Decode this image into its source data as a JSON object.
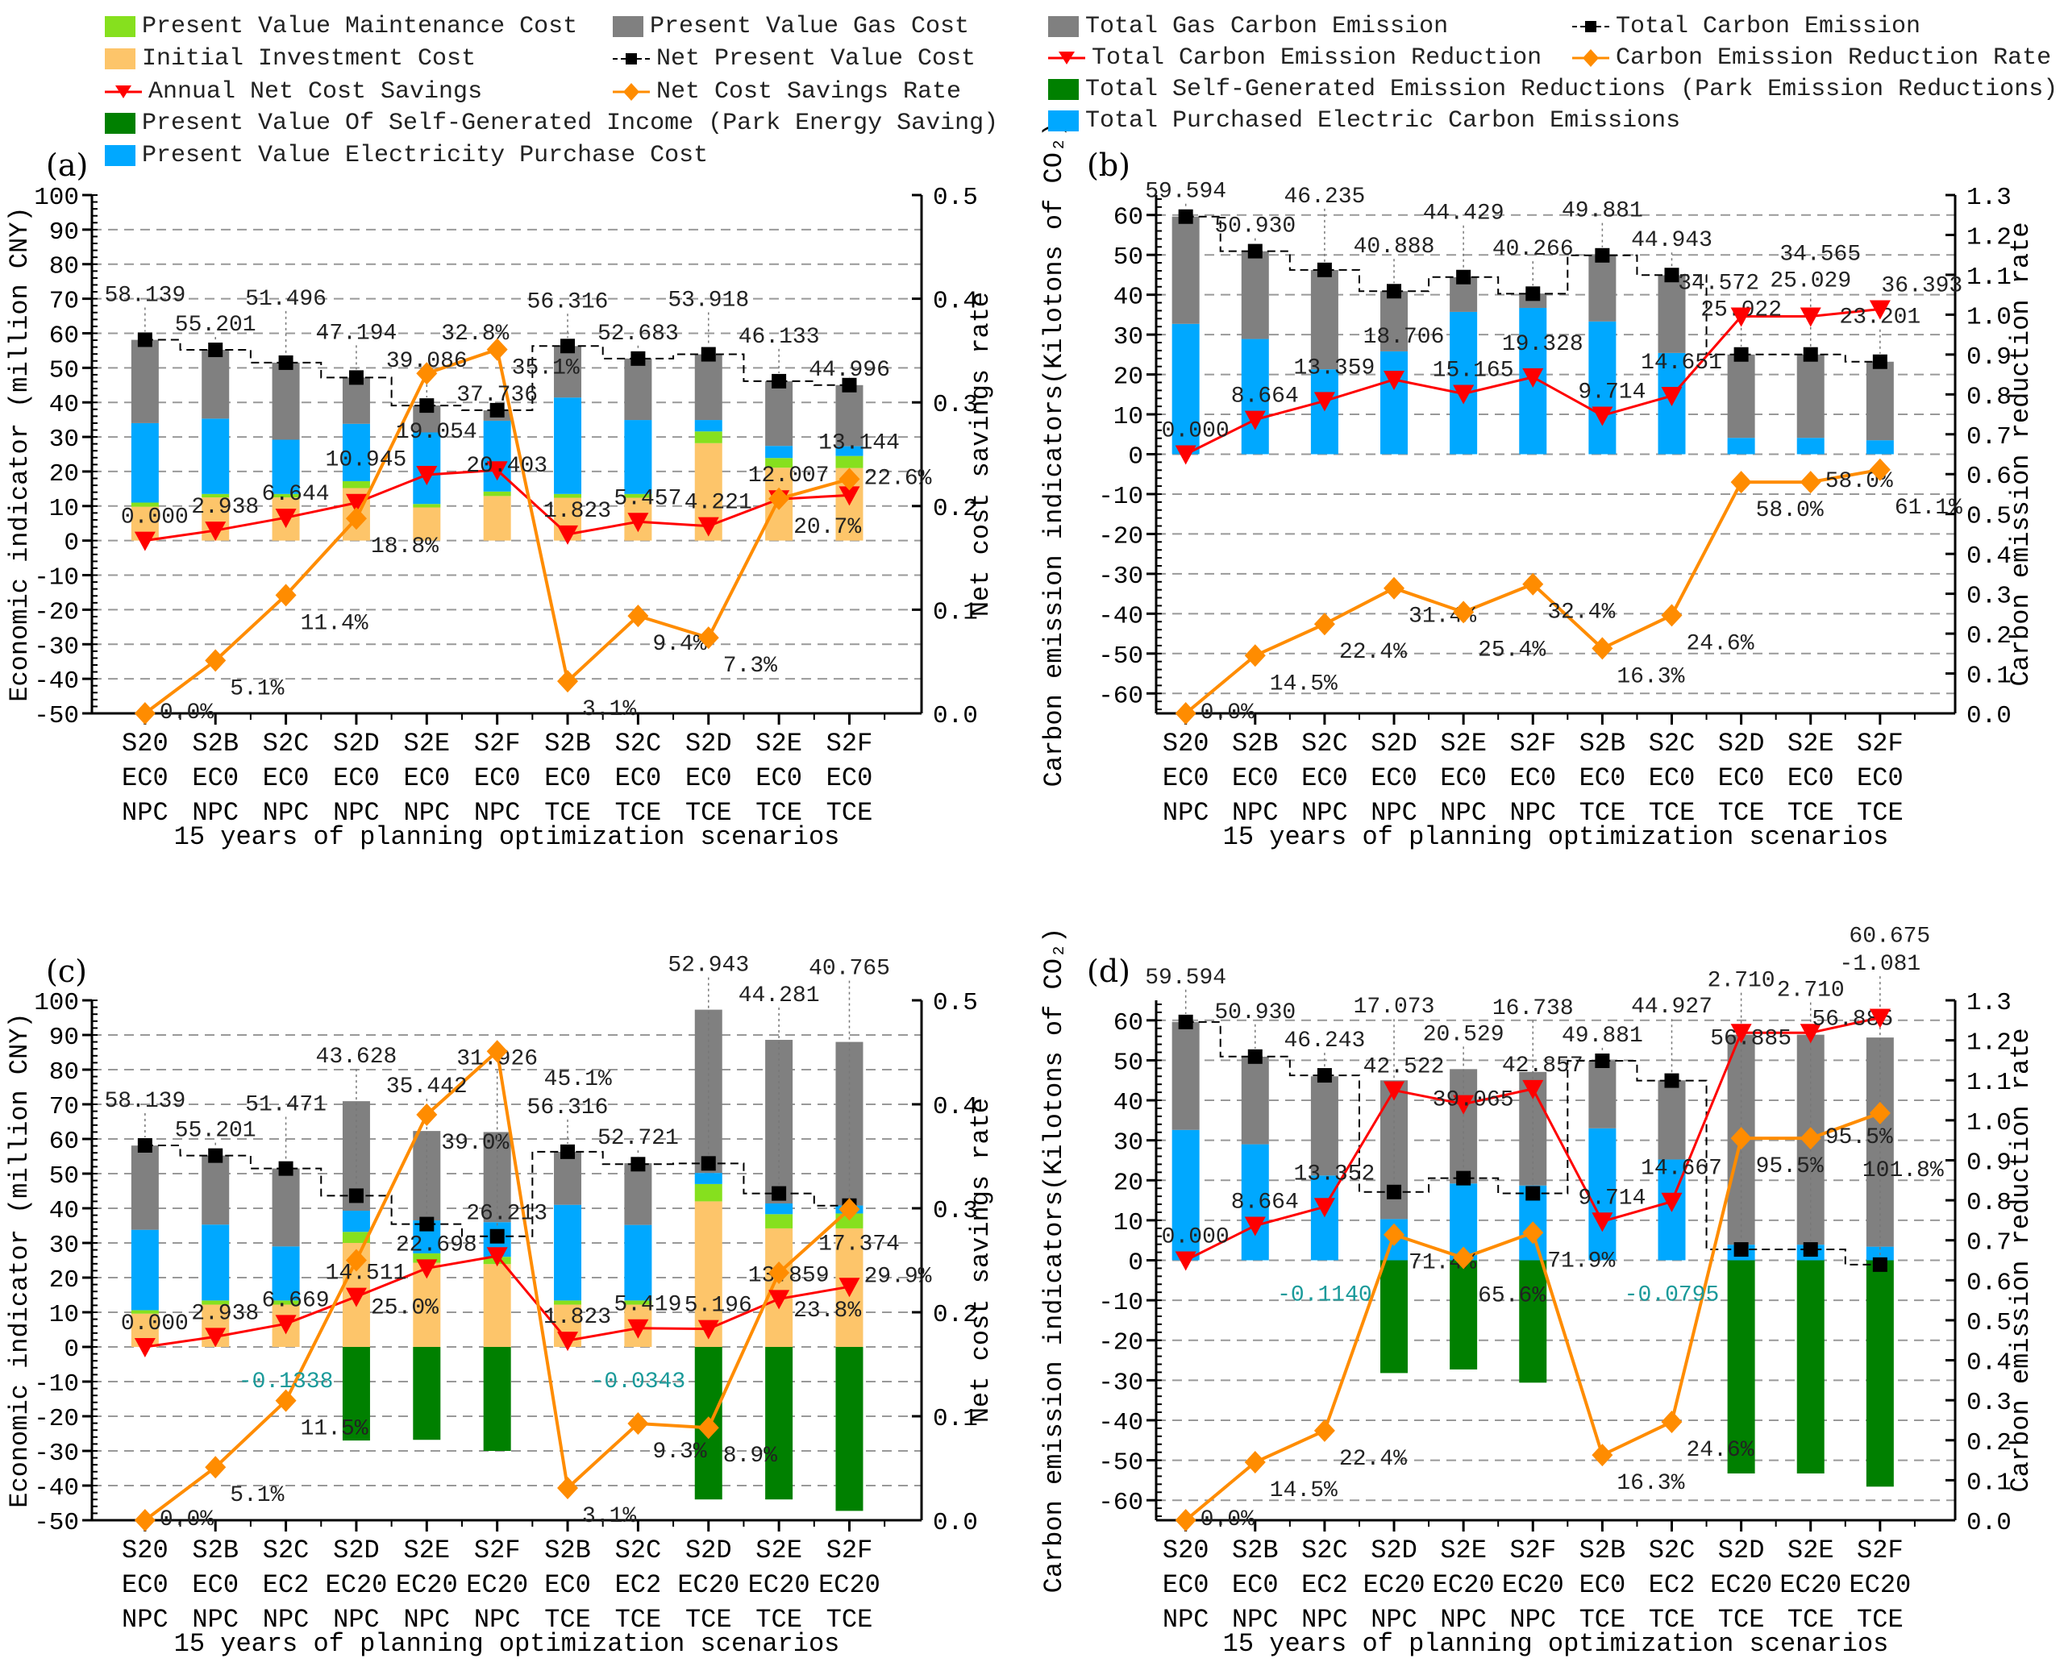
{
  "legend_left": [
    {
      "label": "Present Value Maintenance Cost",
      "color": "#86e01e",
      "kind": "bar"
    },
    {
      "label": "Present Value Gas Cost",
      "color": "#808080",
      "kind": "bar"
    },
    {
      "label": "Initial Investment Cost",
      "color": "#fdc56a",
      "kind": "bar"
    },
    {
      "label": "Net Present Value Cost",
      "color": "#000000",
      "kind": "dash-square"
    },
    {
      "label": "Annual Net Cost Savings",
      "color": "#ff0000",
      "kind": "line-triangle"
    },
    {
      "label": "Net Cost Savings Rate",
      "color": "#ff8c00",
      "kind": "line-diamond"
    },
    {
      "label": "Present Value Of Self-Generated Income (Park Energy Saving)",
      "color": "#008000",
      "kind": "bar"
    },
    {
      "label": "Present Value Electricity Purchase Cost",
      "color": "#00a8ff",
      "kind": "bar"
    }
  ],
  "legend_right": [
    {
      "label": "Total Gas Carbon Emission",
      "color": "#808080",
      "kind": "bar"
    },
    {
      "label": "Total Carbon Emission",
      "color": "#000000",
      "kind": "dash-square"
    },
    {
      "label": "Total Carbon Emission Reduction",
      "color": "#ff0000",
      "kind": "line-triangle"
    },
    {
      "label": "Carbon Emission Reduction Rate",
      "color": "#ff8c00",
      "kind": "line-diamond"
    },
    {
      "label": "Total Self-Generated Emission Reductions (Park Emission Reductions)",
      "color": "#008000",
      "kind": "bar"
    },
    {
      "label": "Total Purchased Electric Carbon Emissions",
      "color": "#00a8ff",
      "kind": "bar"
    }
  ],
  "chart_data": [
    {
      "panel": "(a)",
      "type": "bar",
      "xlabel": "15 years of planning optimization scenarios",
      "ylabel": "Economic indicator (million CNY)",
      "y2label": "Net cost savings rate",
      "ylim": [
        -50,
        100
      ],
      "yticks": [
        -50,
        -40,
        -30,
        -20,
        -10,
        0,
        10,
        20,
        30,
        40,
        50,
        60,
        70,
        80,
        90,
        100
      ],
      "y2lim": [
        0,
        0.5
      ],
      "y2ticks": [
        "0.0",
        "0.1",
        "0.2",
        "0.3",
        "0.4",
        "0.5"
      ],
      "categories": [
        [
          "S20",
          "EC0",
          "NPC"
        ],
        [
          "S2B",
          "EC0",
          "NPC"
        ],
        [
          "S2C",
          "EC0",
          "NPC"
        ],
        [
          "S2D",
          "EC0",
          "NPC"
        ],
        [
          "S2E",
          "EC0",
          "NPC"
        ],
        [
          "S2F",
          "EC0",
          "NPC"
        ],
        [
          "S2B",
          "EC0",
          "TCE"
        ],
        [
          "S2C",
          "EC0",
          "TCE"
        ],
        [
          "S2D",
          "EC0",
          "TCE"
        ],
        [
          "S2E",
          "EC0",
          "TCE"
        ],
        [
          "S2F",
          "EC0",
          "TCE"
        ]
      ],
      "series": [
        {
          "name": "Initial Investment Cost",
          "color": "#fdc56a",
          "values": [
            9.8,
            12.5,
            12.5,
            15.2,
            9.6,
            12.9,
            12.4,
            12.4,
            28.2,
            21.1,
            21.0
          ]
        },
        {
          "name": "Present Value Maintenance Cost",
          "color": "#86e01e",
          "values": [
            1.2,
            1.0,
            1.0,
            2.0,
            1.0,
            1.3,
            1.1,
            1.1,
            3.4,
            2.8,
            3.5
          ]
        },
        {
          "name": "Present Value Electricity Purchase Cost",
          "color": "#00a8ff",
          "values": [
            23.0,
            21.8,
            15.7,
            16.6,
            20.7,
            20.5,
            27.9,
            21.4,
            3.3,
            3.5,
            2.8
          ]
        },
        {
          "name": "Present Value Gas Cost",
          "color": "#808080",
          "values": [
            24.1,
            19.9,
            22.3,
            13.4,
            7.8,
            3.0,
            14.9,
            17.8,
            19.0,
            18.7,
            17.7
          ]
        }
      ],
      "totals": [
        "58.139",
        "55.201",
        "51.496",
        "47.194",
        "39.086",
        "37.736",
        "56.316",
        "52.683",
        "53.918",
        "46.133",
        "44.996"
      ],
      "savings": [
        "0.000",
        "2.938",
        "6.644",
        "10.945",
        "19.054",
        "20.403",
        "1.823",
        "5.457",
        "4.221",
        "12.007",
        "13.144"
      ],
      "rates": [
        "0.0%",
        "5.1%",
        "11.4%",
        "18.8%",
        "32.8%",
        "35.1%",
        "3.1%",
        "9.4%",
        "7.3%",
        "20.7%",
        "22.6%"
      ],
      "annotations": []
    },
    {
      "panel": "(b)",
      "type": "bar",
      "xlabel": "15 years of planning optimization scenarios",
      "ylabel": "Carbon emission indicators(Kilotons of CO₂)",
      "y2label": "Carbon emission reduction rate",
      "ylim": [
        -65,
        65
      ],
      "yticks": [
        -60,
        -50,
        -40,
        -30,
        -20,
        -10,
        0,
        10,
        20,
        30,
        40,
        50,
        60
      ],
      "y2lim": [
        0,
        1.3
      ],
      "y2ticks": [
        "0.0",
        "0.1",
        "0.2",
        "0.3",
        "0.4",
        "0.5",
        "0.6",
        "0.7",
        "0.8",
        "0.9",
        "1.0",
        "1.1",
        "1.2",
        "1.3"
      ],
      "categories": [
        [
          "S20",
          "EC0",
          "NPC"
        ],
        [
          "S2B",
          "EC0",
          "NPC"
        ],
        [
          "S2C",
          "EC0",
          "NPC"
        ],
        [
          "S2D",
          "EC0",
          "NPC"
        ],
        [
          "S2E",
          "EC0",
          "NPC"
        ],
        [
          "S2F",
          "EC0",
          "NPC"
        ],
        [
          "S2B",
          "EC0",
          "TCE"
        ],
        [
          "S2C",
          "EC0",
          "TCE"
        ],
        [
          "S2D",
          "EC0",
          "TCE"
        ],
        [
          "S2E",
          "EC0",
          "TCE"
        ],
        [
          "S2F",
          "EC0",
          "TCE"
        ]
      ],
      "series": [
        {
          "name": "Total Purchased Electric Carbon Emissions",
          "color": "#00a8ff",
          "values": [
            32.7,
            28.9,
            21.3,
            25.8,
            35.7,
            36.7,
            33.3,
            25.4,
            4.1,
            4.1,
            3.5
          ]
        },
        {
          "name": "Total Gas Carbon Emission",
          "color": "#808080",
          "values": [
            26.9,
            22.0,
            24.9,
            15.1,
            8.7,
            3.6,
            16.6,
            19.5,
            20.9,
            20.9,
            19.7
          ]
        }
      ],
      "totals": [
        "59.594",
        "50.930",
        "46.235",
        "40.888",
        "44.429",
        "40.266",
        "49.881",
        "44.943",
        "25.022",
        "25.029",
        "23.201"
      ],
      "savings": [
        "0.000",
        "8.664",
        "13.359",
        "18.706",
        "15.165",
        "19.328",
        "9.714",
        "14.651",
        "34.572",
        "34.565",
        "36.393"
      ],
      "rates": [
        "0.0%",
        "14.5%",
        "22.4%",
        "31.4%",
        "25.4%",
        "32.4%",
        "16.3%",
        "24.6%",
        "58.0%",
        "58.0%",
        "61.1%"
      ],
      "annotations": []
    },
    {
      "panel": "(c)",
      "type": "bar",
      "xlabel": "15 years of planning optimization scenarios",
      "ylabel": "Economic indicator (million CNY)",
      "y2label": "Net cost savings rate",
      "ylim": [
        -50,
        100
      ],
      "yticks": [
        -50,
        -40,
        -30,
        -20,
        -10,
        0,
        10,
        20,
        30,
        40,
        50,
        60,
        70,
        80,
        90,
        100
      ],
      "y2lim": [
        0,
        0.5
      ],
      "y2ticks": [
        "0.0",
        "0.1",
        "0.2",
        "0.3",
        "0.4",
        "0.5"
      ],
      "categories": [
        [
          "S20",
          "EC0",
          "NPC"
        ],
        [
          "S2B",
          "EC0",
          "NPC"
        ],
        [
          "S2C",
          "EC2",
          "NPC"
        ],
        [
          "S2D",
          "EC20",
          "NPC"
        ],
        [
          "S2E",
          "EC20",
          "NPC"
        ],
        [
          "S2F",
          "EC20",
          "NPC"
        ],
        [
          "S2B",
          "EC0",
          "TCE"
        ],
        [
          "S2C",
          "EC2",
          "TCE"
        ],
        [
          "S2D",
          "EC20",
          "TCE"
        ],
        [
          "S2E",
          "EC20",
          "TCE"
        ],
        [
          "S2F",
          "EC20",
          "TCE"
        ]
      ],
      "series": [
        {
          "name": "Initial Investment Cost",
          "color": "#fdc56a",
          "values": [
            9.6,
            12.2,
            12.2,
            30.0,
            24.3,
            23.9,
            12.2,
            12.2,
            42.0,
            34.2,
            34.2
          ]
        },
        {
          "name": "Present Value Maintenance Cost",
          "color": "#86e01e",
          "values": [
            1.0,
            1.2,
            1.2,
            3.2,
            2.7,
            2.1,
            1.2,
            1.2,
            5.0,
            4.1,
            4.3
          ]
        },
        {
          "name": "Present Value Electricity Purchase Cost",
          "color": "#00a8ff",
          "values": [
            23.2,
            21.9,
            15.6,
            6.1,
            9.5,
            10.0,
            27.6,
            21.8,
            3.2,
            3.1,
            2.3
          ]
        },
        {
          "name": "Present Value Gas Cost",
          "color": "#808080",
          "values": [
            24.3,
            19.9,
            22.5,
            31.6,
            25.8,
            26.0,
            15.3,
            17.8,
            47.1,
            47.2,
            47.2
          ]
        },
        {
          "name": "Present Value Of Self-Generated Income (Park Energy Saving)",
          "color": "#008000",
          "values": [
            0,
            0,
            0,
            -27.0,
            -26.8,
            -30.0,
            0,
            0,
            -44.0,
            -44.0,
            -47.3
          ]
        }
      ],
      "totals": [
        "58.139",
        "55.201",
        "51.471",
        "43.628",
        "35.442",
        "31.926",
        "56.316",
        "52.721",
        "52.943",
        "44.281",
        "40.765"
      ],
      "savings": [
        "0.000",
        "2.938",
        "6.669",
        "14.511",
        "22.698",
        "26.213",
        "1.823",
        "5.419",
        "5.196",
        "13.859",
        "17.374"
      ],
      "rates": [
        "0.0%",
        "5.1%",
        "11.5%",
        "25.0%",
        "39.0%",
        "45.1%",
        "3.1%",
        "9.3%",
        "8.9%",
        "23.8%",
        "29.9%"
      ],
      "annotations": [
        {
          "index": 2,
          "text": "-0.1338",
          "color": "#1a9a9a"
        },
        {
          "index": 7,
          "text": "-0.0343",
          "color": "#1a9a9a"
        }
      ]
    },
    {
      "panel": "(d)",
      "type": "bar",
      "xlabel": "15 years of planning optimization scenarios",
      "ylabel": "Carbon emission indicators(Kilotons of CO₂)",
      "y2label": "Carbon emission reduction rate",
      "ylim": [
        -65,
        65
      ],
      "yticks": [
        -60,
        -50,
        -40,
        -30,
        -20,
        -10,
        0,
        10,
        20,
        30,
        40,
        50,
        60
      ],
      "y2lim": [
        0,
        1.3
      ],
      "y2ticks": [
        "0.0",
        "0.1",
        "0.2",
        "0.3",
        "0.4",
        "0.5",
        "0.6",
        "0.7",
        "0.8",
        "0.9",
        "1.0",
        "1.1",
        "1.2",
        "1.3"
      ],
      "categories": [
        [
          "S20",
          "EC0",
          "NPC"
        ],
        [
          "S2B",
          "EC0",
          "NPC"
        ],
        [
          "S2C",
          "EC2",
          "NPC"
        ],
        [
          "S2D",
          "EC20",
          "NPC"
        ],
        [
          "S2E",
          "EC20",
          "NPC"
        ],
        [
          "S2F",
          "EC20",
          "NPC"
        ],
        [
          "S2B",
          "EC0",
          "TCE"
        ],
        [
          "S2C",
          "EC2",
          "TCE"
        ],
        [
          "S2D",
          "EC20",
          "TCE"
        ],
        [
          "S2E",
          "EC20",
          "TCE"
        ],
        [
          "S2F",
          "EC20",
          "TCE"
        ]
      ],
      "series": [
        {
          "name": "Total Purchased Electric Carbon Emissions",
          "color": "#00a8ff",
          "values": [
            32.6,
            29.0,
            21.2,
            10.3,
            19.2,
            18.7,
            33.0,
            25.2,
            3.9,
            3.9,
            3.4
          ]
        },
        {
          "name": "Total Gas Carbon Emission",
          "color": "#808080",
          "values": [
            27.0,
            21.9,
            24.8,
            34.7,
            28.6,
            28.4,
            16.9,
            19.8,
            52.5,
            52.5,
            52.3
          ]
        },
        {
          "name": "Total Self-Generated Emission Reductions (Park Emission Reductions)",
          "color": "#008000",
          "values": [
            0,
            0,
            0,
            -28.2,
            -27.3,
            -30.6,
            0,
            0,
            -53.3,
            -53.3,
            -56.6
          ]
        }
      ],
      "totals": [
        "59.594",
        "50.930",
        "46.243",
        "17.073",
        "20.529",
        "16.738",
        "49.881",
        "44.927",
        "2.710",
        "2.710",
        "-1.081"
      ],
      "savings": [
        "0.000",
        "8.664",
        "13.352",
        "42.522",
        "39.065",
        "42.857",
        "9.714",
        "14.667",
        "56.885",
        "56.885",
        "60.675"
      ],
      "rates": [
        "0.0%",
        "14.5%",
        "22.4%",
        "71.4%",
        "65.6%",
        "71.9%",
        "16.3%",
        "24.6%",
        "95.5%",
        "95.5%",
        "101.8%"
      ],
      "annotations": [
        {
          "index": 2,
          "text": "-0.1140",
          "color": "#1a9a9a"
        },
        {
          "index": 7,
          "text": "-0.0795",
          "color": "#1a9a9a"
        }
      ]
    }
  ]
}
